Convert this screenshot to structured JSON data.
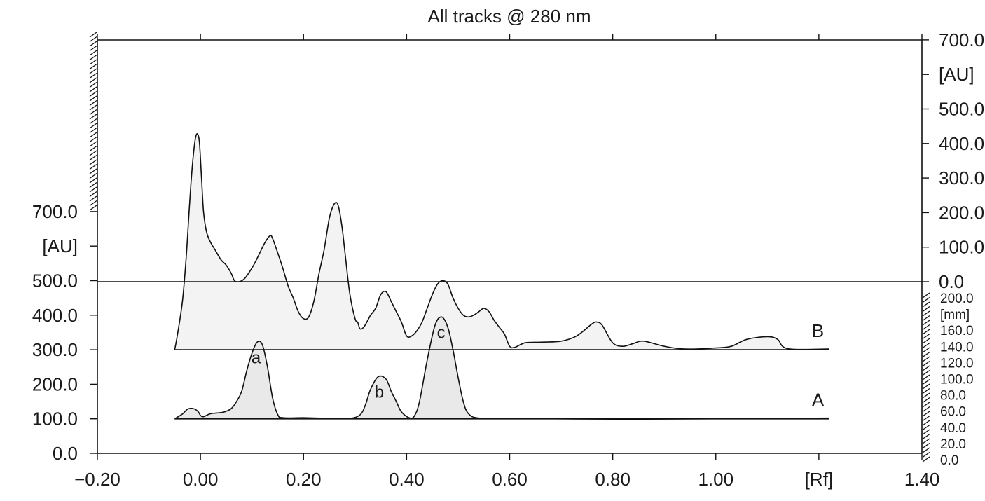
{
  "chart_data": {
    "type": "line",
    "title": "All tracks @ 280 nm",
    "x_axis": {
      "range": [
        -0.2,
        1.4
      ],
      "ticks": [
        {
          "value": -0.2,
          "label": "−0.20"
        },
        {
          "value": 0.0,
          "label": "0.00"
        },
        {
          "value": 0.2,
          "label": "0.20"
        },
        {
          "value": 0.4,
          "label": "0.40"
        },
        {
          "value": 0.6,
          "label": "0.60"
        },
        {
          "value": 0.8,
          "label": "0.80"
        },
        {
          "value": 1.0,
          "label": "1.00"
        },
        {
          "value": 1.2,
          "label": "[Rf]"
        },
        {
          "value": 1.4,
          "label": "1.40"
        }
      ]
    },
    "left_axis": {
      "ticks": [
        {
          "value": 0,
          "label": "0.0"
        },
        {
          "value": 100,
          "label": "100.0"
        },
        {
          "value": 200,
          "label": "200.0"
        },
        {
          "value": 300,
          "label": "300.0"
        },
        {
          "value": 400,
          "label": "400.0"
        },
        {
          "value": 500,
          "label": "500.0"
        },
        {
          "value": 600,
          "label": "[AU]"
        },
        {
          "value": 700,
          "label": "700.0"
        }
      ]
    },
    "right_axis_au": {
      "ticks": [
        {
          "value": 0,
          "label": "0.0"
        },
        {
          "value": 100,
          "label": "100.0"
        },
        {
          "value": 200,
          "label": "200.0"
        },
        {
          "value": 300,
          "label": "300.0"
        },
        {
          "value": 400,
          "label": "400.0"
        },
        {
          "value": 500,
          "label": "500.0"
        },
        {
          "value": 600,
          "label": "[AU]"
        },
        {
          "value": 700,
          "label": "700.0"
        }
      ]
    },
    "right_axis_mm": {
      "ticks": [
        {
          "value": 0,
          "label": "0.0"
        },
        {
          "value": 20,
          "label": "20.0"
        },
        {
          "value": 40,
          "label": "40.0"
        },
        {
          "value": 60,
          "label": "60.0"
        },
        {
          "value": 80,
          "label": "80.0"
        },
        {
          "value": 100,
          "label": "100.0"
        },
        {
          "value": 120,
          "label": "120.0"
        },
        {
          "value": 140,
          "label": "140.0"
        },
        {
          "value": 160,
          "label": "160.0"
        },
        {
          "value": 180,
          "label": "[mm]"
        },
        {
          "value": 200,
          "label": "200.0"
        }
      ]
    },
    "series": [
      {
        "name": "A",
        "baseline": 100,
        "x_range": [
          -0.05,
          1.22
        ],
        "points": [
          [
            -0.05,
            100
          ],
          [
            -0.035,
            114
          ],
          [
            -0.025,
            128
          ],
          [
            -0.015,
            130
          ],
          [
            -0.005,
            122
          ],
          [
            0.0,
            110
          ],
          [
            0.005,
            106
          ],
          [
            0.012,
            110
          ],
          [
            0.02,
            115
          ],
          [
            0.04,
            118
          ],
          [
            0.05,
            122
          ],
          [
            0.06,
            130
          ],
          [
            0.07,
            150
          ],
          [
            0.08,
            180
          ],
          [
            0.09,
            240
          ],
          [
            0.1,
            290
          ],
          [
            0.11,
            322
          ],
          [
            0.12,
            315
          ],
          [
            0.13,
            250
          ],
          [
            0.14,
            160
          ],
          [
            0.15,
            112
          ],
          [
            0.16,
            103
          ],
          [
            0.2,
            103
          ],
          [
            0.25,
            101
          ],
          [
            0.29,
            101
          ],
          [
            0.31,
            112
          ],
          [
            0.32,
            140
          ],
          [
            0.33,
            185
          ],
          [
            0.345,
            222
          ],
          [
            0.36,
            215
          ],
          [
            0.37,
            180
          ],
          [
            0.38,
            150
          ],
          [
            0.39,
            120
          ],
          [
            0.405,
            103
          ],
          [
            0.415,
            108
          ],
          [
            0.425,
            150
          ],
          [
            0.44,
            270
          ],
          [
            0.455,
            370
          ],
          [
            0.468,
            395
          ],
          [
            0.48,
            365
          ],
          [
            0.49,
            300
          ],
          [
            0.5,
            220
          ],
          [
            0.51,
            150
          ],
          [
            0.52,
            115
          ],
          [
            0.54,
            102
          ],
          [
            0.6,
            101
          ],
          [
            0.8,
            99
          ],
          [
            1.0,
            100
          ],
          [
            1.22,
            102
          ]
        ],
        "peaks": [
          {
            "label": "a",
            "x": 0.108,
            "y": 322
          },
          {
            "label": "b",
            "x": 0.347,
            "y": 222
          },
          {
            "label": "c",
            "x": 0.467,
            "y": 395
          }
        ]
      },
      {
        "name": "B",
        "baseline": 300,
        "x_range": [
          -0.05,
          1.22
        ],
        "points": [
          [
            -0.05,
            300
          ],
          [
            -0.045,
            340
          ],
          [
            -0.035,
            440
          ],
          [
            -0.028,
            560
          ],
          [
            -0.022,
            700
          ],
          [
            -0.018,
            790
          ],
          [
            -0.014,
            860
          ],
          [
            -0.01,
            910
          ],
          [
            -0.006,
            925
          ],
          [
            -0.002,
            900
          ],
          [
            0.002,
            800
          ],
          [
            0.006,
            700
          ],
          [
            0.012,
            640
          ],
          [
            0.02,
            610
          ],
          [
            0.028,
            590
          ],
          [
            0.04,
            560
          ],
          [
            0.05,
            545
          ],
          [
            0.06,
            520
          ],
          [
            0.066,
            500
          ],
          [
            0.075,
            497
          ],
          [
            0.085,
            505
          ],
          [
            0.095,
            525
          ],
          [
            0.105,
            550
          ],
          [
            0.115,
            580
          ],
          [
            0.125,
            610
          ],
          [
            0.135,
            630
          ],
          [
            0.14,
            622
          ],
          [
            0.15,
            580
          ],
          [
            0.16,
            535
          ],
          [
            0.17,
            485
          ],
          [
            0.18,
            450
          ],
          [
            0.19,
            410
          ],
          [
            0.2,
            390
          ],
          [
            0.21,
            395
          ],
          [
            0.22,
            440
          ],
          [
            0.23,
            520
          ],
          [
            0.24,
            590
          ],
          [
            0.25,
            680
          ],
          [
            0.258,
            718
          ],
          [
            0.265,
            725
          ],
          [
            0.27,
            700
          ],
          [
            0.276,
            640
          ],
          [
            0.282,
            560
          ],
          [
            0.29,
            460
          ],
          [
            0.3,
            390
          ],
          [
            0.305,
            380
          ],
          [
            0.31,
            360
          ],
          [
            0.318,
            368
          ],
          [
            0.33,
            400
          ],
          [
            0.34,
            420
          ],
          [
            0.35,
            460
          ],
          [
            0.36,
            468
          ],
          [
            0.37,
            440
          ],
          [
            0.38,
            410
          ],
          [
            0.39,
            380
          ],
          [
            0.4,
            340
          ],
          [
            0.41,
            340
          ],
          [
            0.42,
            355
          ],
          [
            0.43,
            380
          ],
          [
            0.44,
            420
          ],
          [
            0.45,
            460
          ],
          [
            0.46,
            490
          ],
          [
            0.47,
            500
          ],
          [
            0.48,
            490
          ],
          [
            0.49,
            450
          ],
          [
            0.5,
            420
          ],
          [
            0.51,
            400
          ],
          [
            0.52,
            395
          ],
          [
            0.53,
            400
          ],
          [
            0.54,
            410
          ],
          [
            0.55,
            420
          ],
          [
            0.56,
            410
          ],
          [
            0.57,
            385
          ],
          [
            0.58,
            365
          ],
          [
            0.59,
            345
          ],
          [
            0.6,
            310
          ],
          [
            0.61,
            307
          ],
          [
            0.63,
            320
          ],
          [
            0.66,
            322
          ],
          [
            0.7,
            325
          ],
          [
            0.73,
            340
          ],
          [
            0.76,
            375
          ],
          [
            0.77,
            380
          ],
          [
            0.78,
            370
          ],
          [
            0.8,
            320
          ],
          [
            0.82,
            310
          ],
          [
            0.84,
            318
          ],
          [
            0.86,
            325
          ],
          [
            0.9,
            310
          ],
          [
            0.94,
            302
          ],
          [
            1.0,
            305
          ],
          [
            1.03,
            310
          ],
          [
            1.06,
            330
          ],
          [
            1.1,
            338
          ],
          [
            1.12,
            330
          ],
          [
            1.14,
            303
          ],
          [
            1.22,
            302
          ]
        ]
      }
    ],
    "annotations": [
      {
        "text": "a",
        "near": "peak a"
      },
      {
        "text": "b",
        "near": "peak b"
      },
      {
        "text": "c",
        "near": "peak c"
      }
    ],
    "grid": false
  }
}
